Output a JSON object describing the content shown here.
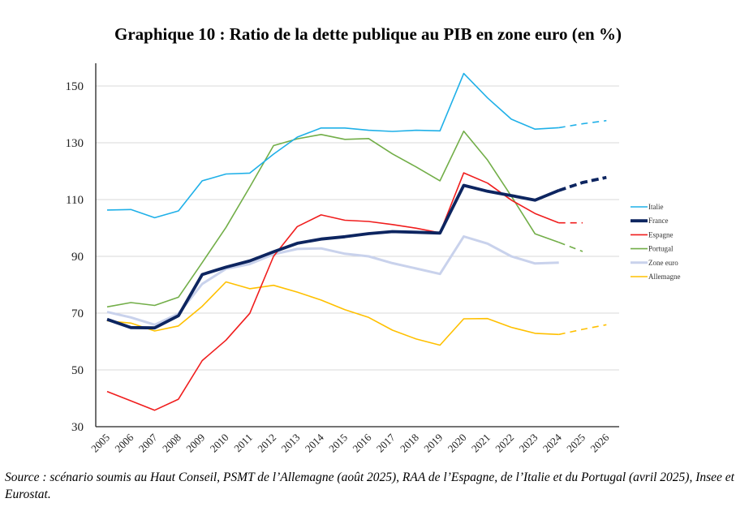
{
  "title": "Graphique 10 : Ratio de la dette publique au PIB en zone euro (en %)",
  "source": "Source : scénario soumis au Haut Conseil, PSMT de l’Allemagne (août 2025), RAA de l’Espagne, de l’Italie et du Portugal (avril 2025), Insee et Eurostat.",
  "chart_data": {
    "type": "line",
    "title": "Graphique 10 : Ratio de la dette publique au PIB en zone euro (en %)",
    "xlabel": "",
    "ylabel": "",
    "x": [
      "2005",
      "2006",
      "2007",
      "2008",
      "2009",
      "2010",
      "2011",
      "2012",
      "2013",
      "2014",
      "2015",
      "2016",
      "2017",
      "2018",
      "2019",
      "2020",
      "2021",
      "2022",
      "2023",
      "2024",
      "2025",
      "2026"
    ],
    "ylim": [
      30,
      160
    ],
    "yticks": [
      30,
      50,
      70,
      90,
      110,
      130,
      150
    ],
    "grid": true,
    "legend_position": "right",
    "projection_note": "Dashed segments denote projections",
    "series": [
      {
        "name": "Italie",
        "color": "#1FB0E8",
        "width": "thin",
        "values": [
          106.3,
          106.5,
          103.6,
          106.0,
          116.6,
          119.0,
          119.3,
          126.0,
          132.0,
          135.2,
          135.2,
          134.4,
          134.0,
          134.4,
          134.2,
          154.4,
          145.8,
          138.3,
          134.8,
          135.3,
          136.7,
          137.8
        ],
        "projected_from": "2024"
      },
      {
        "name": "France",
        "color": "#0D2560",
        "width": "thick",
        "values": [
          67.8,
          64.9,
          64.8,
          69.1,
          83.6,
          86.2,
          88.4,
          91.6,
          94.6,
          96.1,
          96.9,
          98.0,
          98.7,
          98.5,
          98.2,
          115.0,
          112.9,
          111.4,
          109.8,
          113.2,
          116.0,
          117.8
        ],
        "projected_from": "2024"
      },
      {
        "name": "Espagne",
        "color": "#F01D1D",
        "width": "thin",
        "values": [
          42.4,
          39.1,
          35.8,
          39.7,
          53.3,
          60.5,
          69.9,
          90.0,
          100.5,
          104.6,
          102.7,
          102.3,
          101.2,
          99.9,
          98.3,
          119.4,
          115.8,
          109.8,
          105.1,
          101.8,
          101.8,
          null
        ],
        "projected_from": "2024"
      },
      {
        "name": "Portugal",
        "color": "#72AE48",
        "width": "thin",
        "values": [
          72.2,
          73.7,
          72.7,
          75.6,
          87.8,
          100.2,
          114.4,
          129.0,
          131.4,
          132.9,
          131.2,
          131.5,
          126.1,
          121.5,
          116.6,
          134.1,
          123.9,
          111.2,
          97.9,
          94.9,
          91.7,
          null
        ],
        "projected_from": "2024"
      },
      {
        "name": "Zone euro",
        "color": "#C9D2EC",
        "width": "medium",
        "values": [
          70.4,
          68.5,
          65.9,
          69.8,
          80.3,
          85.6,
          87.3,
          90.7,
          92.6,
          92.8,
          90.9,
          90.0,
          87.6,
          85.7,
          83.8,
          97.0,
          94.5,
          90.0,
          87.5,
          87.8,
          null,
          null
        ],
        "projected_from": null
      },
      {
        "name": "Allemagne",
        "color": "#FFC000",
        "width": "thin",
        "values": [
          67.3,
          66.5,
          63.7,
          65.5,
          72.4,
          81.0,
          78.6,
          79.8,
          77.4,
          74.6,
          71.2,
          68.5,
          64.0,
          60.9,
          58.7,
          68.0,
          68.1,
          65.0,
          62.9,
          62.5,
          64.3,
          65.9
        ],
        "projected_from": "2024"
      }
    ]
  }
}
